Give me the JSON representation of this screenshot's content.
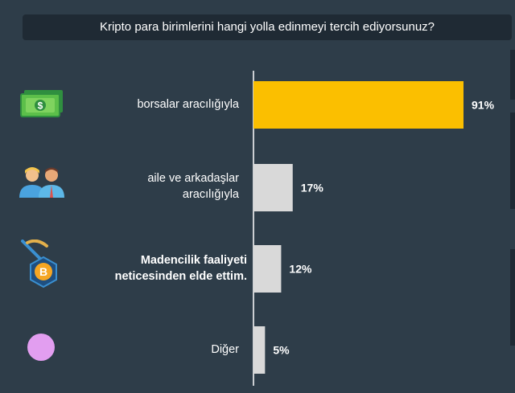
{
  "chart_data": {
    "type": "bar",
    "orientation": "horizontal",
    "title": "Kripto para birimlerini hangi yolla edinmeyi tercih ediyorsunuz?",
    "categories": [
      "borsalar aracılığıyla",
      "aile ve arkadaşlar\naracılığıyla",
      "Madencilik faaliyeti\nneticesinden elde ettim.",
      "Diğer"
    ],
    "values": [
      91,
      17,
      12,
      5
    ],
    "value_labels": [
      "91%",
      "17%",
      "12%",
      "5%"
    ],
    "xlim": [
      0,
      100
    ],
    "grid": false,
    "legend": "none"
  },
  "icons": [
    "money-icon",
    "people-icon",
    "bitcoin-mining-icon",
    "circle-icon"
  ],
  "colors": {
    "background": "#2e3d49",
    "title_bg": "#1f2a34",
    "highlight_bar": "#fbbf00",
    "bar": "#d9d9d9",
    "axis": "#ffffff",
    "other_dot": "#e29ef0"
  }
}
